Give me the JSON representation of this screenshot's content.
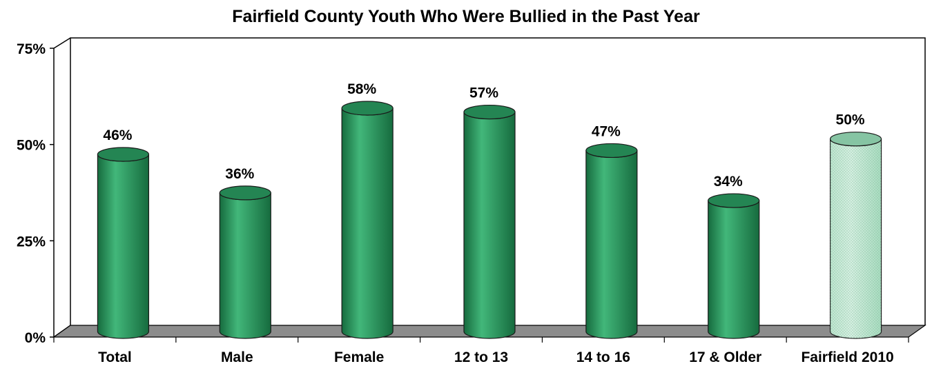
{
  "chart_data": {
    "type": "bar",
    "title": "Fairfield County Youth Who Were Bullied in the Past Year",
    "categories": [
      "Total",
      "Male",
      "Female",
      "12 to 13",
      "14 to 16",
      "17 & Older",
      "Fairfield 2010"
    ],
    "values": [
      46,
      36,
      58,
      57,
      47,
      34,
      50
    ],
    "data_labels": [
      "46%",
      "36%",
      "58%",
      "57%",
      "47%",
      "34%",
      "50%"
    ],
    "yticks": [
      {
        "value": 0,
        "label": "0%"
      },
      {
        "value": 25,
        "label": "25%"
      },
      {
        "value": 50,
        "label": "50%"
      },
      {
        "value": 75,
        "label": "75%"
      }
    ],
    "ylim": [
      0,
      75
    ],
    "xlabel": "",
    "ylabel": "",
    "grid": false,
    "legend": "none",
    "bar_shape": "cylinder",
    "colors": {
      "bar": "#2e9e63",
      "bar_highlight": "#42b77a",
      "bar_shadow": "#166b3e",
      "bar_top": "#248553",
      "comparison_bar": "#a9dcc0",
      "comparison_bar_top": "#86c4a3",
      "floor": "#8c8c8c",
      "axis": "#000000"
    },
    "highlight_categories": [
      "Fairfield 2010"
    ]
  }
}
